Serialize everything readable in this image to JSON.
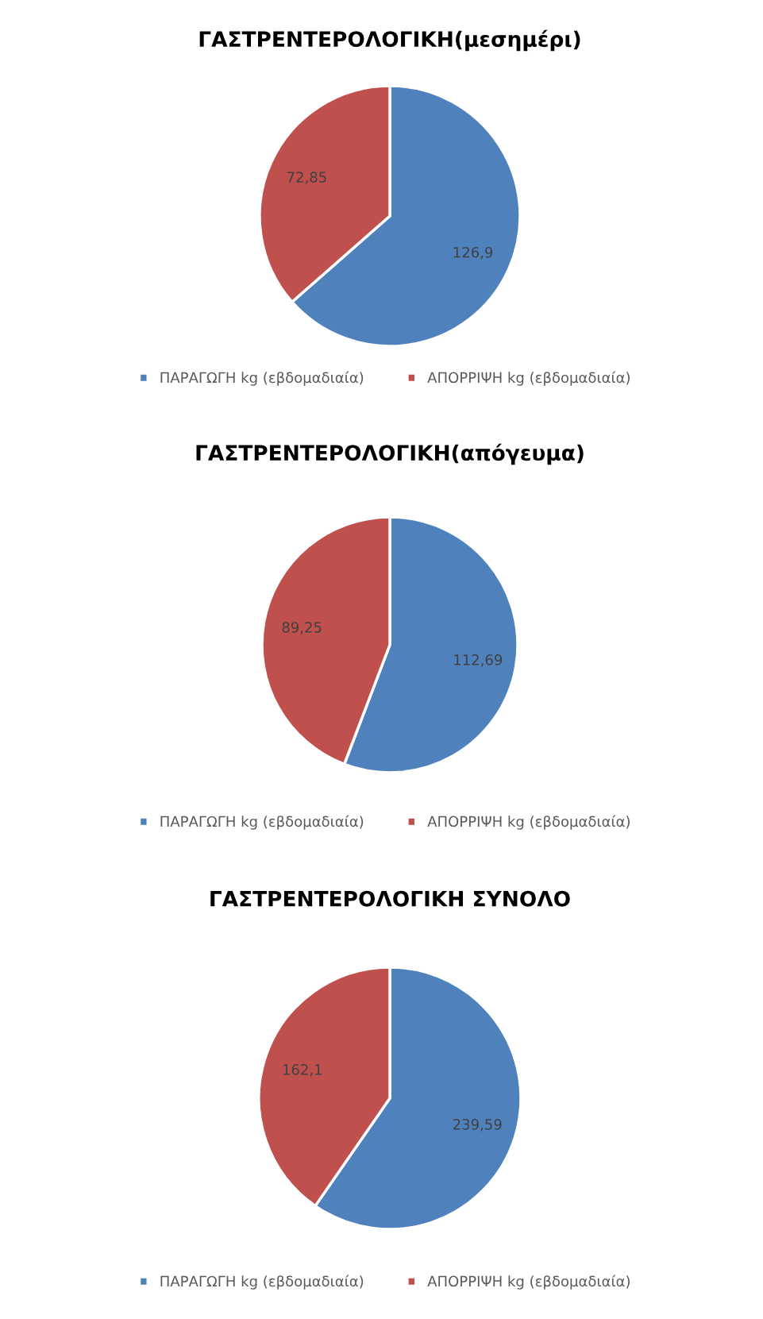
{
  "chart_data": [
    {
      "type": "pie",
      "title": "ΓΑΣΤΡΕΝΤΕΡΟΛΟΓΙΚΗ(μεσημέρι)",
      "categories": [
        "ΠΑΡΑΓΩΓΗ kg (εβδομαδιαία)",
        "ΑΠΟΡΡΙΨΗ kg (εβδομαδιαία)"
      ],
      "values": [
        126.9,
        72.85
      ],
      "value_labels": [
        "126,9",
        "72,85"
      ],
      "colors": [
        "#4f81bd",
        "#c0504d"
      ],
      "legend": "bottom"
    },
    {
      "type": "pie",
      "title": "ΓΑΣΤΡΕΝΤΕΡΟΛΟΓΙΚΗ(απόγευμα)",
      "categories": [
        "ΠΑΡΑΓΩΓΗ kg (εβδομαδιαία)",
        "ΑΠΟΡΡΙΨΗ kg (εβδομαδιαία)"
      ],
      "values": [
        112.69,
        89.25
      ],
      "value_labels": [
        "112,69",
        "89,25"
      ],
      "colors": [
        "#4f81bd",
        "#c0504d"
      ],
      "legend": "bottom"
    },
    {
      "type": "pie",
      "title": "ΓΑΣΤΡΕΝΤΕΡΟΛΟΓΙΚΗ ΣΥΝΟΛΟ",
      "categories": [
        "ΠΑΡΑΓΩΓΗ kg (εβδομαδιαία)",
        "ΑΠΟΡΡΙΨΗ kg (εβδομαδιαία)"
      ],
      "values": [
        239.59,
        162.1
      ],
      "value_labels": [
        "239,59",
        "162,1"
      ],
      "colors": [
        "#4f81bd",
        "#c0504d"
      ],
      "legend": "bottom"
    }
  ]
}
